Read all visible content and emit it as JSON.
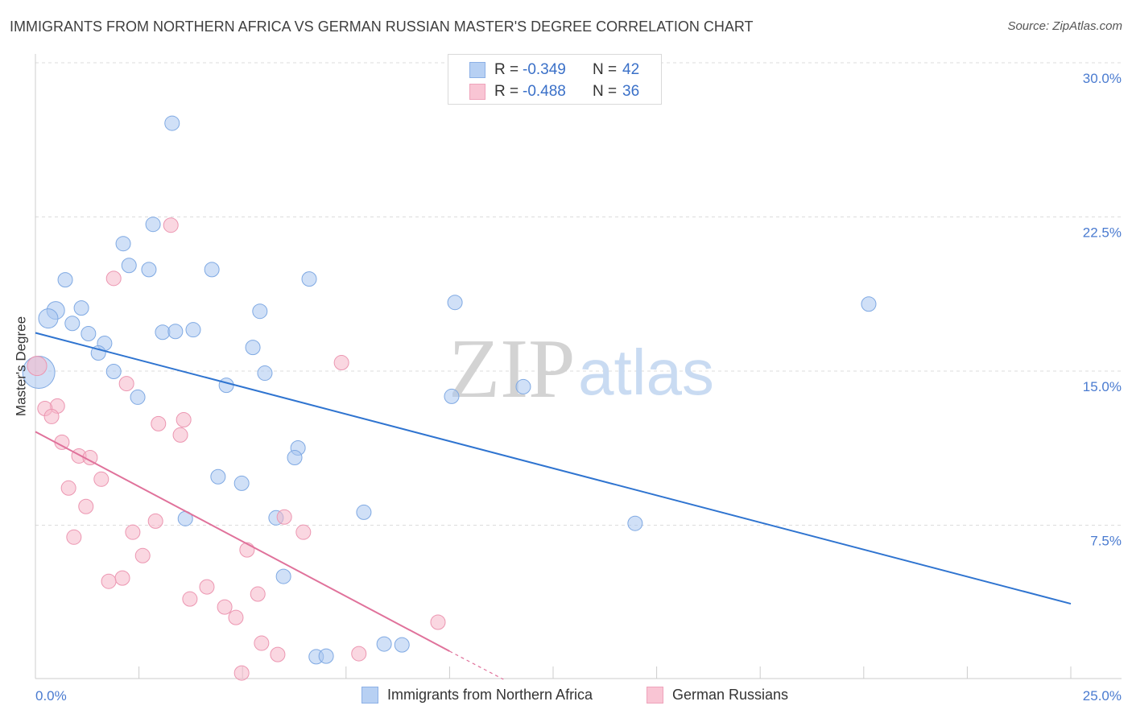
{
  "source": "Source: ZipAtlas.com",
  "watermark": {
    "zip": "ZIP",
    "atlas": "atlas"
  },
  "legend": {
    "r_label": "R =",
    "n_label": "N ="
  },
  "colors": {
    "blue_fill": "#a9c6f0",
    "blue_stroke": "#7fa9e3",
    "blue_line": "#2f74d0",
    "pink_fill": "#f5b7c9",
    "pink_stroke": "#ec96b1",
    "pink_line": "#e0729b",
    "tick_text": "#4a7bd0",
    "value_text": "#3a70c8",
    "grid": "#dcdcdc",
    "axis": "#cccccc",
    "watermark_zip": "#d3d3d3",
    "watermark_atlas": "#c9dbf2"
  },
  "chart_data": {
    "type": "scatter",
    "title": "IMMIGRANTS FROM NORTHERN AFRICA VS GERMAN RUSSIAN MASTER'S DEGREE CORRELATION CHART",
    "xlabel": "",
    "ylabel": "Master's Degree",
    "xlim": [
      0,
      25
    ],
    "ylim": [
      0,
      30
    ],
    "x_ticks": [
      0,
      2.5,
      5,
      7.5,
      10,
      12.5,
      15,
      17.5,
      20,
      22.5,
      25
    ],
    "x_tick_labels": [
      "0.0%",
      "25.0%"
    ],
    "y_ticks": [
      7.5,
      15,
      22.5,
      30
    ],
    "y_tick_labels": [
      "7.5%",
      "15.0%",
      "22.5%",
      "30.0%"
    ],
    "grid": true,
    "legend_position": "top-center",
    "series": [
      {
        "name": "Immigrants from Northern Africa",
        "r": "-0.349",
        "n": "42",
        "points": [
          [
            3.3,
            27.06
          ],
          [
            2.84,
            22.14
          ],
          [
            2.12,
            21.2
          ],
          [
            2.26,
            20.14
          ],
          [
            2.74,
            19.94
          ],
          [
            4.26,
            19.94
          ],
          [
            0.72,
            19.44
          ],
          [
            6.61,
            19.48
          ],
          [
            10.13,
            18.34
          ],
          [
            20.12,
            18.26
          ],
          [
            0.49,
            17.95
          ],
          [
            1.11,
            18.07
          ],
          [
            5.42,
            17.91
          ],
          [
            0.31,
            17.56
          ],
          [
            0.89,
            17.32
          ],
          [
            1.28,
            16.82
          ],
          [
            3.07,
            16.89
          ],
          [
            3.38,
            16.93
          ],
          [
            3.81,
            17.01
          ],
          [
            1.67,
            16.35
          ],
          [
            1.52,
            15.88
          ],
          [
            5.25,
            16.15
          ],
          [
            0.08,
            14.94
          ],
          [
            1.89,
            14.98
          ],
          [
            5.54,
            14.9
          ],
          [
            4.61,
            14.31
          ],
          [
            11.78,
            14.24
          ],
          [
            2.47,
            13.73
          ],
          [
            10.05,
            13.77
          ],
          [
            6.34,
            11.26
          ],
          [
            6.26,
            10.79
          ],
          [
            4.41,
            9.86
          ],
          [
            4.98,
            9.54
          ],
          [
            7.93,
            8.13
          ],
          [
            5.81,
            7.86
          ],
          [
            3.62,
            7.82
          ],
          [
            14.48,
            7.59
          ],
          [
            5.99,
            5.01
          ],
          [
            8.42,
            1.72
          ],
          [
            8.85,
            1.68
          ],
          [
            6.78,
            1.1
          ],
          [
            7.02,
            1.13
          ]
        ],
        "trend": [
          [
            0,
            16.86
          ],
          [
            25,
            3.68
          ]
        ]
      },
      {
        "name": "German Russians",
        "r": "-0.488",
        "n": "36",
        "points": [
          [
            3.27,
            22.1
          ],
          [
            1.89,
            19.51
          ],
          [
            7.39,
            15.41
          ],
          [
            0.04,
            15.25
          ],
          [
            2.2,
            14.39
          ],
          [
            0.53,
            13.3
          ],
          [
            0.23,
            13.18
          ],
          [
            0.39,
            12.79
          ],
          [
            3.58,
            12.63
          ],
          [
            2.97,
            12.44
          ],
          [
            3.5,
            11.89
          ],
          [
            0.64,
            11.54
          ],
          [
            1.05,
            10.87
          ],
          [
            1.32,
            10.79
          ],
          [
            1.59,
            9.74
          ],
          [
            0.8,
            9.31
          ],
          [
            1.22,
            8.41
          ],
          [
            6.01,
            7.9
          ],
          [
            2.9,
            7.7
          ],
          [
            2.35,
            7.16
          ],
          [
            6.47,
            7.16
          ],
          [
            0.93,
            6.92
          ],
          [
            5.11,
            6.3
          ],
          [
            2.59,
            6.02
          ],
          [
            2.1,
            4.93
          ],
          [
            1.77,
            4.77
          ],
          [
            4.14,
            4.5
          ],
          [
            5.37,
            4.15
          ],
          [
            3.73,
            3.91
          ],
          [
            4.57,
            3.52
          ],
          [
            4.84,
            3.01
          ],
          [
            9.72,
            2.78
          ],
          [
            5.46,
            1.76
          ],
          [
            5.85,
            1.21
          ],
          [
            7.81,
            1.25
          ],
          [
            4.98,
            0.31
          ]
        ],
        "trend": [
          [
            0,
            12.05
          ],
          [
            10,
            1.37
          ]
        ],
        "trend_extension": [
          [
            10,
            1.37
          ],
          [
            11.3,
            0
          ]
        ]
      }
    ]
  }
}
